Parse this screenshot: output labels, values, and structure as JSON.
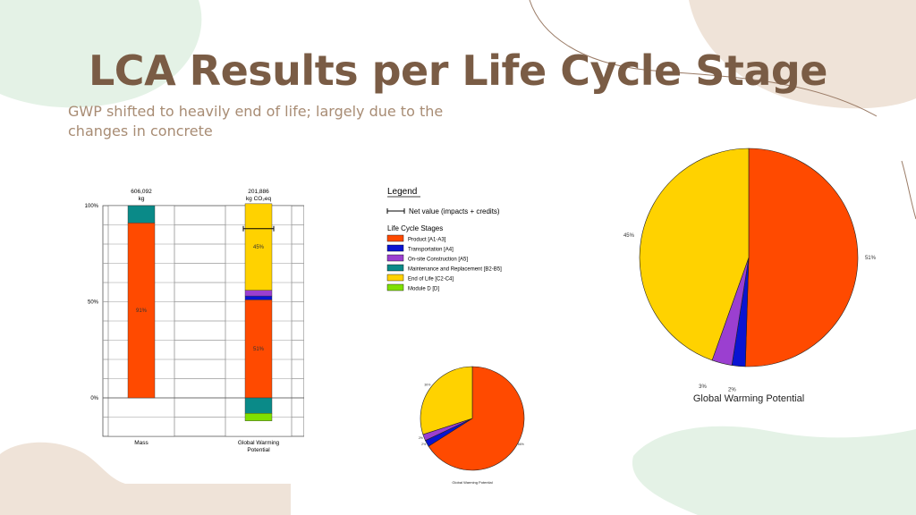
{
  "slide": {
    "title": "LCA Results per Life Cycle Stage",
    "subtitle": "GWP shifted to heavily end of life; largely due to the changes in concrete"
  },
  "colors": {
    "product": "#ff4a00",
    "transportation": "#0a14d2",
    "construction": "#9b3fd0",
    "maintenance": "#0a8a88",
    "end_of_life": "#ffd200",
    "module_d": "#7fe000",
    "title": "#7a5c45",
    "subtitle": "#a88c74"
  },
  "legend": {
    "title": "Legend",
    "net_value_label": "Net value (impacts + credits)",
    "stages_title": "Life Cycle Stages",
    "items": [
      {
        "label": "Product [A1-A3]",
        "color": "#ff4a00"
      },
      {
        "label": "Transportation [A4]",
        "color": "#0a14d2"
      },
      {
        "label": "On-site Construction [A5]",
        "color": "#9b3fd0"
      },
      {
        "label": "Maintenance and Replacement [B2-B5]",
        "color": "#0a8a88"
      },
      {
        "label": "End of Life [C2-C4]",
        "color": "#ffd200"
      },
      {
        "label": "Module D [D]",
        "color": "#7fe000"
      }
    ]
  },
  "chart_data": [
    {
      "type": "bar",
      "title": "",
      "stacked": true,
      "categories": [
        "Mass",
        "Global Warming Potential"
      ],
      "category_labels": [
        [
          "Mass"
        ],
        [
          "Global Warming",
          "Potential"
        ]
      ],
      "totals": [
        [
          "606,092",
          "kg"
        ],
        [
          "201,886",
          "kg CO₂eq"
        ]
      ],
      "y_ticks": [
        "100%",
        "50%",
        "0%"
      ],
      "ylim": [
        -20,
        100
      ],
      "series": [
        {
          "name": "Product [A1-A3]",
          "color": "#ff4a00",
          "values": [
            91,
            51
          ],
          "labels": [
            "91%",
            "51%"
          ]
        },
        {
          "name": "Transportation [A4]",
          "color": "#0a14d2",
          "values": [
            0,
            2
          ],
          "labels": [
            "",
            ""
          ]
        },
        {
          "name": "On-site Construction [A5]",
          "color": "#9b3fd0",
          "values": [
            0,
            3
          ],
          "labels": [
            "",
            ""
          ]
        },
        {
          "name": "End of Life [C2-C4]",
          "color": "#ffd200",
          "values": [
            0,
            45
          ],
          "labels": [
            "",
            "45%"
          ]
        },
        {
          "name": "Maintenance and Replacement [B2-B5]",
          "color": "#0a8a88",
          "values": [
            9,
            -8
          ],
          "labels": [
            "",
            ""
          ]
        },
        {
          "name": "Module D [D]",
          "color": "#7fe000",
          "values": [
            0,
            -4
          ],
          "labels": [
            "",
            ""
          ]
        }
      ],
      "net_value": [
        null,
        88
      ]
    },
    {
      "type": "pie",
      "title": "Global Warming Potential",
      "slices": [
        {
          "name": "Product [A1-A3]",
          "value": 51,
          "label": "51%",
          "color": "#ff4a00"
        },
        {
          "name": "Transportation [A4]",
          "value": 2,
          "label": "2%",
          "color": "#0a14d2"
        },
        {
          "name": "On-site Construction [A5]",
          "value": 3,
          "label": "3%",
          "color": "#9b3fd0"
        },
        {
          "name": "End of Life [C2-C4]",
          "value": 45,
          "label": "45%",
          "color": "#ffd200"
        }
      ]
    },
    {
      "type": "pie",
      "title": "Global Warming Potential",
      "slices": [
        {
          "name": "Product [A1-A3]",
          "value": 66,
          "label": "66%",
          "color": "#ff4a00"
        },
        {
          "name": "Transportation [A4]",
          "value": 2,
          "label": "2%",
          "color": "#0a14d2"
        },
        {
          "name": "On-site Construction [A5]",
          "value": 2,
          "label": "2%",
          "color": "#9b3fd0"
        },
        {
          "name": "End of Life [C2-C4]",
          "value": 30,
          "label": "30%",
          "color": "#ffd200"
        }
      ]
    }
  ]
}
